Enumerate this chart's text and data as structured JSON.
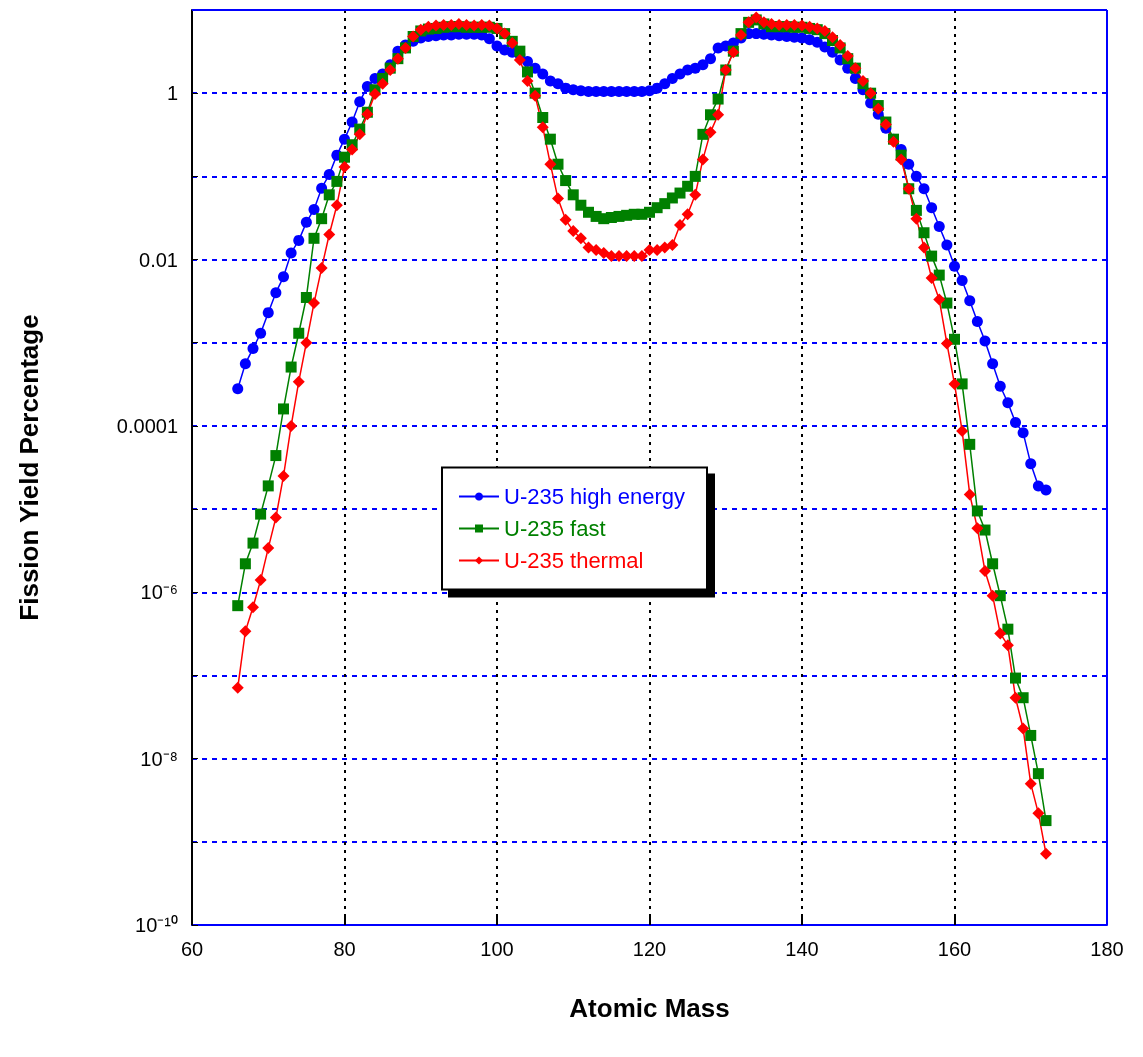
{
  "chart_data": {
    "type": "line",
    "xlabel": "Atomic Mass",
    "ylabel": "Fission Yield Percentage",
    "log": "y",
    "grid": true,
    "legend": "center",
    "xlim": [
      60,
      180
    ],
    "xticks": [
      60,
      80,
      100,
      120,
      140,
      160,
      180
    ],
    "ylim": [
      1e-10,
      10
    ],
    "yticks": [
      {
        "value": 1e-10,
        "label": "10⁻¹⁰"
      },
      {
        "value": 1e-09,
        "label": null
      },
      {
        "value": 1e-08,
        "label": "10⁻⁸"
      },
      {
        "value": 1e-07,
        "label": null
      },
      {
        "value": 1e-06,
        "label": "10⁻⁶"
      },
      {
        "value": 1e-05,
        "label": null
      },
      {
        "value": 0.0001,
        "label": "0.0001"
      },
      {
        "value": 0.001,
        "label": null
      },
      {
        "value": 0.01,
        "label": "0.01"
      },
      {
        "value": 0.1,
        "label": null
      },
      {
        "value": 1,
        "label": "1"
      },
      {
        "value": 10,
        "label": null
      }
    ],
    "x": [
      66,
      67,
      68,
      69,
      70,
      71,
      72,
      73,
      74,
      75,
      76,
      77,
      78,
      79,
      80,
      81,
      82,
      83,
      84,
      85,
      86,
      87,
      88,
      89,
      90,
      91,
      92,
      93,
      94,
      95,
      96,
      97,
      98,
      99,
      100,
      101,
      102,
      103,
      104,
      105,
      106,
      107,
      108,
      109,
      110,
      111,
      112,
      113,
      114,
      115,
      116,
      117,
      118,
      119,
      120,
      121,
      122,
      123,
      124,
      125,
      126,
      127,
      128,
      129,
      130,
      131,
      132,
      133,
      134,
      135,
      136,
      137,
      138,
      139,
      140,
      141,
      142,
      143,
      144,
      145,
      146,
      147,
      148,
      149,
      150,
      151,
      152,
      153,
      154,
      155,
      156,
      157,
      158,
      159,
      160,
      161,
      162,
      163,
      164,
      165,
      166,
      167,
      168,
      169,
      170,
      171,
      172
    ],
    "series": [
      {
        "name": "U-235 high energy",
        "color": "#0000ff",
        "marker": "circle",
        "values": [
          0.00028,
          0.00056,
          0.00085,
          0.0013,
          0.0023,
          0.004,
          0.0062,
          0.012,
          0.017,
          0.028,
          0.04,
          0.072,
          0.105,
          0.18,
          0.28,
          0.45,
          0.79,
          1.2,
          1.5,
          1.7,
          2.2,
          3.2,
          3.8,
          4.2,
          4.6,
          4.8,
          4.9,
          5.0,
          5.0,
          5.1,
          5.1,
          5.1,
          5.0,
          4.5,
          3.7,
          3.3,
          3.1,
          2.9,
          2.4,
          2.0,
          1.7,
          1.4,
          1.3,
          1.15,
          1.1,
          1.07,
          1.05,
          1.05,
          1.05,
          1.05,
          1.05,
          1.05,
          1.05,
          1.05,
          1.07,
          1.15,
          1.3,
          1.5,
          1.7,
          1.9,
          2.0,
          2.2,
          2.6,
          3.5,
          3.7,
          4.0,
          4.6,
          5.2,
          5.2,
          5.1,
          5.0,
          4.9,
          4.8,
          4.7,
          4.6,
          4.4,
          4.1,
          3.6,
          3.1,
          2.5,
          2.0,
          1.5,
          1.1,
          0.76,
          0.56,
          0.38,
          0.28,
          0.21,
          0.14,
          0.1,
          0.071,
          0.042,
          0.025,
          0.015,
          0.0083,
          0.0056,
          0.0032,
          0.0018,
          0.00105,
          0.00056,
          0.0003,
          0.00019,
          0.00011,
          8.3e-05,
          3.5e-05,
          1.9e-05,
          1.7e-05
        ]
      },
      {
        "name": "U-235 fast",
        "color": "#008000",
        "marker": "square",
        "values": [
          6.9e-07,
          2.2e-06,
          3.9e-06,
          8.7e-06,
          1.9e-05,
          4.4e-05,
          0.00016,
          0.00051,
          0.0013,
          0.0035,
          0.018,
          0.031,
          0.06,
          0.087,
          0.17,
          0.24,
          0.37,
          0.59,
          1.1,
          1.5,
          2.0,
          2.6,
          3.5,
          4.8,
          5.6,
          5.9,
          6.0,
          6.2,
          6.3,
          6.3,
          6.2,
          6.2,
          6.2,
          6.2,
          6.0,
          5.2,
          4.2,
          3.2,
          1.8,
          1.0,
          0.51,
          0.28,
          0.14,
          0.089,
          0.06,
          0.045,
          0.037,
          0.033,
          0.031,
          0.032,
          0.033,
          0.034,
          0.035,
          0.035,
          0.037,
          0.042,
          0.047,
          0.055,
          0.063,
          0.076,
          0.1,
          0.32,
          0.55,
          0.85,
          1.9,
          3.2,
          5.2,
          7.1,
          7.6,
          6.8,
          6.3,
          6.3,
          6.3,
          6.2,
          6.2,
          6.0,
          5.8,
          5.2,
          4.3,
          3.5,
          2.6,
          2.0,
          1.3,
          1.0,
          0.71,
          0.45,
          0.28,
          0.18,
          0.071,
          0.039,
          0.021,
          0.011,
          0.0065,
          0.003,
          0.0011,
          0.00032,
          6e-05,
          9.5e-06,
          5.6e-06,
          2.2e-06,
          9.1e-07,
          3.6e-07,
          9.3e-08,
          5.4e-08,
          1.9e-08,
          6.6e-09,
          1.8e-09
        ]
      },
      {
        "name": "U-235 thermal",
        "color": "#ff0000",
        "marker": "diamond",
        "values": [
          7.1e-08,
          3.4e-07,
          6.6e-07,
          1.4e-06,
          3.4e-06,
          7.9e-06,
          2.5e-05,
          0.0001,
          0.00034,
          0.001,
          0.003,
          0.0079,
          0.02,
          0.045,
          0.13,
          0.21,
          0.32,
          0.56,
          0.98,
          1.3,
          1.9,
          2.6,
          3.5,
          4.8,
          5.8,
          6.3,
          6.5,
          6.6,
          6.6,
          6.8,
          6.6,
          6.5,
          6.6,
          6.5,
          6.0,
          5.2,
          4.0,
          2.5,
          1.4,
          0.93,
          0.39,
          0.14,
          0.054,
          0.03,
          0.022,
          0.018,
          0.014,
          0.013,
          0.012,
          0.011,
          0.011,
          0.011,
          0.011,
          0.011,
          0.013,
          0.013,
          0.014,
          0.015,
          0.026,
          0.035,
          0.06,
          0.16,
          0.34,
          0.55,
          1.9,
          3.1,
          5.0,
          7.1,
          8.1,
          7.1,
          6.8,
          6.6,
          6.6,
          6.6,
          6.5,
          6.3,
          6.0,
          5.6,
          4.7,
          3.8,
          2.8,
          2.0,
          1.4,
          1.0,
          0.65,
          0.42,
          0.26,
          0.16,
          0.071,
          0.031,
          0.014,
          0.006,
          0.0033,
          0.00098,
          0.00032,
          8.7e-05,
          1.5e-05,
          5.9e-06,
          1.8e-06,
          9.1e-07,
          3.2e-07,
          2.3e-07,
          5.4e-08,
          2.3e-08,
          5e-09,
          2.2e-09,
          7.2e-10
        ]
      }
    ]
  }
}
